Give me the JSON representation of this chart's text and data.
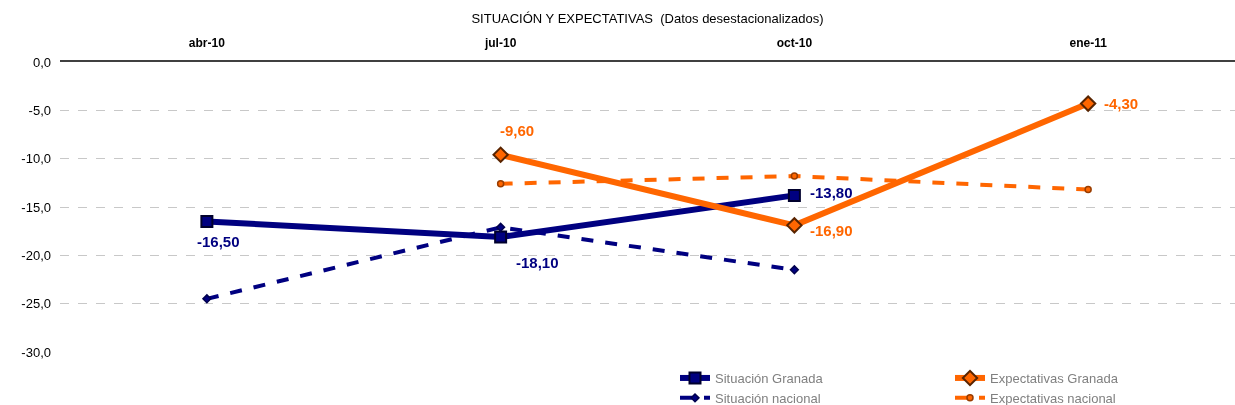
{
  "chart_data": {
    "type": "line",
    "title": "SITUACIÓN Y EXPECTATIVAS  (Datos desestacionalizados)",
    "categories": [
      "abr-10",
      "jul-10",
      "oct-10",
      "ene-11"
    ],
    "series": [
      {
        "name": "Situación Granada",
        "color": "#000080",
        "values": [
          -16.5,
          -18.1,
          -13.8,
          null
        ],
        "value_labels": [
          "-16,50",
          "-18,10",
          "-13,80",
          null
        ],
        "marker": "square",
        "line_style": "solid"
      },
      {
        "name": "Expectativas Granada",
        "color": "#ff6600",
        "values": [
          null,
          -9.6,
          -16.9,
          -4.3
        ],
        "value_labels": [
          null,
          "-9,60",
          "-16,90",
          "-4,30"
        ],
        "marker": "diamond",
        "line_style": "solid"
      },
      {
        "name": "Situación nacional",
        "color": "#000080",
        "values": [
          -24.5,
          -17.1,
          -21.5,
          null
        ],
        "marker": "diamond",
        "line_style": "dashed"
      },
      {
        "name": "Expectativas nacional",
        "color": "#ff6600",
        "values": [
          null,
          -12.6,
          -11.8,
          -13.2
        ],
        "marker": "circle",
        "line_style": "dashed"
      }
    ],
    "ylim": [
      -30,
      0
    ],
    "yticks": [
      {
        "value": 0,
        "label": "0,0"
      },
      {
        "value": -5,
        "label": "-5,0"
      },
      {
        "value": -10,
        "label": "-10,0"
      },
      {
        "value": -15,
        "label": "-15,0"
      },
      {
        "value": -20,
        "label": "-20,0"
      },
      {
        "value": -25,
        "label": "-25,0"
      },
      {
        "value": -30,
        "label": "-30,0"
      }
    ],
    "grid": "y",
    "legend": "bottom right"
  }
}
